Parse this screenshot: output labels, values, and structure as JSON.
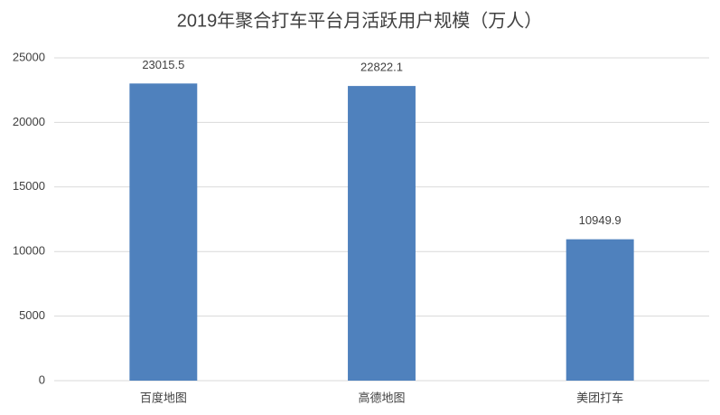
{
  "chart_data": {
    "type": "bar",
    "title": "2019年聚合打车平台月活跃用户规模（万人）",
    "categories": [
      "百度地图",
      "高德地图",
      "美团打车"
    ],
    "values": [
      23015.5,
      22822.1,
      10949.9
    ],
    "color": "#4f81bd",
    "ylim": [
      0,
      25000
    ],
    "yticks": [
      0,
      5000,
      10000,
      15000,
      20000,
      25000
    ],
    "grid": true
  }
}
